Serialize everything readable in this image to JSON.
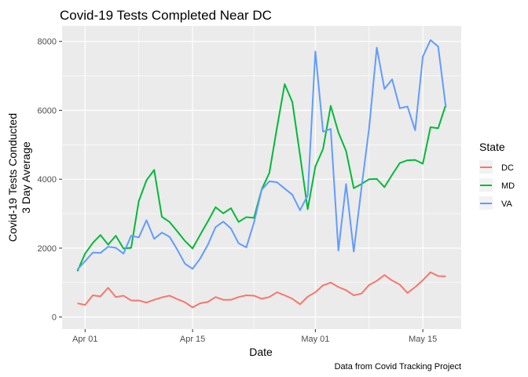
{
  "chart_data": {
    "type": "line",
    "title": "Covid-19 Tests Completed Near DC",
    "xlabel": "Date",
    "ylabel_line1": "Covid-19 Tests Conducted",
    "ylabel_line2": "3 Day Average",
    "caption": "Data from Covid Tracking Project",
    "legend_title": "State",
    "legend_position": "right",
    "grid": true,
    "panel_background": "#ebebeb",
    "xlim": [
      "2020-03-29",
      "2020-05-20"
    ],
    "ylim": [
      -350,
      8450
    ],
    "x_ticks": [
      {
        "date": "2020-04-01",
        "label": "Apr 01"
      },
      {
        "date": "2020-04-15",
        "label": "Apr 15"
      },
      {
        "date": "2020-05-01",
        "label": "May 01"
      },
      {
        "date": "2020-05-15",
        "label": "May 15"
      }
    ],
    "y_ticks": [
      0,
      2000,
      4000,
      6000,
      8000
    ],
    "series": [
      {
        "name": "DC",
        "color": "#F8766D",
        "points": [
          [
            "2020-03-31",
            400
          ],
          [
            "2020-04-01",
            350
          ],
          [
            "2020-04-02",
            630
          ],
          [
            "2020-04-03",
            600
          ],
          [
            "2020-04-04",
            850
          ],
          [
            "2020-04-05",
            580
          ],
          [
            "2020-04-06",
            620
          ],
          [
            "2020-04-07",
            480
          ],
          [
            "2020-04-08",
            480
          ],
          [
            "2020-04-09",
            420
          ],
          [
            "2020-04-10",
            500
          ],
          [
            "2020-04-11",
            570
          ],
          [
            "2020-04-12",
            620
          ],
          [
            "2020-04-13",
            520
          ],
          [
            "2020-04-14",
            430
          ],
          [
            "2020-04-15",
            280
          ],
          [
            "2020-04-16",
            400
          ],
          [
            "2020-04-17",
            440
          ],
          [
            "2020-04-18",
            580
          ],
          [
            "2020-04-19",
            500
          ],
          [
            "2020-04-20",
            500
          ],
          [
            "2020-04-21",
            580
          ],
          [
            "2020-04-22",
            630
          ],
          [
            "2020-04-23",
            620
          ],
          [
            "2020-04-24",
            530
          ],
          [
            "2020-04-25",
            580
          ],
          [
            "2020-04-26",
            720
          ],
          [
            "2020-04-27",
            630
          ],
          [
            "2020-04-28",
            530
          ],
          [
            "2020-04-29",
            370
          ],
          [
            "2020-04-30",
            590
          ],
          [
            "2020-05-01",
            720
          ],
          [
            "2020-05-02",
            920
          ],
          [
            "2020-05-03",
            1000
          ],
          [
            "2020-05-04",
            870
          ],
          [
            "2020-05-05",
            780
          ],
          [
            "2020-05-06",
            630
          ],
          [
            "2020-05-07",
            680
          ],
          [
            "2020-05-08",
            930
          ],
          [
            "2020-05-09",
            1050
          ],
          [
            "2020-05-10",
            1220
          ],
          [
            "2020-05-11",
            1060
          ],
          [
            "2020-05-12",
            940
          ],
          [
            "2020-05-13",
            700
          ],
          [
            "2020-05-14",
            870
          ],
          [
            "2020-05-15",
            1070
          ],
          [
            "2020-05-16",
            1300
          ],
          [
            "2020-05-17",
            1190
          ],
          [
            "2020-05-18",
            1180
          ]
        ]
      },
      {
        "name": "MD",
        "color": "#00BA38",
        "points": [
          [
            "2020-03-31",
            1330
          ],
          [
            "2020-04-01",
            1840
          ],
          [
            "2020-04-02",
            2150
          ],
          [
            "2020-04-03",
            2380
          ],
          [
            "2020-04-04",
            2100
          ],
          [
            "2020-04-05",
            2360
          ],
          [
            "2020-04-06",
            1990
          ],
          [
            "2020-04-07",
            2010
          ],
          [
            "2020-04-08",
            3370
          ],
          [
            "2020-04-09",
            3970
          ],
          [
            "2020-04-10",
            4270
          ],
          [
            "2020-04-11",
            2910
          ],
          [
            "2020-04-12",
            2760
          ],
          [
            "2020-04-13",
            2490
          ],
          [
            "2020-04-14",
            2210
          ],
          [
            "2020-04-15",
            1990
          ],
          [
            "2020-04-16",
            2390
          ],
          [
            "2020-04-17",
            2780
          ],
          [
            "2020-04-18",
            3190
          ],
          [
            "2020-04-19",
            3010
          ],
          [
            "2020-04-20",
            3160
          ],
          [
            "2020-04-21",
            2760
          ],
          [
            "2020-04-22",
            2900
          ],
          [
            "2020-04-23",
            2880
          ],
          [
            "2020-04-24",
            3700
          ],
          [
            "2020-04-25",
            4180
          ],
          [
            "2020-04-26",
            5500
          ],
          [
            "2020-04-27",
            6760
          ],
          [
            "2020-04-28",
            6240
          ],
          [
            "2020-04-29",
            4700
          ],
          [
            "2020-04-30",
            3130
          ],
          [
            "2020-05-01",
            4370
          ],
          [
            "2020-05-02",
            4880
          ],
          [
            "2020-05-03",
            6130
          ],
          [
            "2020-05-04",
            5360
          ],
          [
            "2020-05-05",
            4820
          ],
          [
            "2020-05-06",
            3740
          ],
          [
            "2020-05-07",
            3860
          ],
          [
            "2020-05-08",
            4000
          ],
          [
            "2020-05-09",
            4010
          ],
          [
            "2020-05-10",
            3770
          ],
          [
            "2020-05-11",
            4130
          ],
          [
            "2020-05-12",
            4470
          ],
          [
            "2020-05-13",
            4550
          ],
          [
            "2020-05-14",
            4560
          ],
          [
            "2020-05-15",
            4450
          ],
          [
            "2020-05-16",
            5510
          ],
          [
            "2020-05-17",
            5480
          ],
          [
            "2020-05-18",
            6170
          ]
        ]
      },
      {
        "name": "VA",
        "color": "#619CFF",
        "points": [
          [
            "2020-03-31",
            1380
          ],
          [
            "2020-04-01",
            1620
          ],
          [
            "2020-04-02",
            1870
          ],
          [
            "2020-04-03",
            1860
          ],
          [
            "2020-04-04",
            2040
          ],
          [
            "2020-04-05",
            2010
          ],
          [
            "2020-04-06",
            1840
          ],
          [
            "2020-04-07",
            2360
          ],
          [
            "2020-04-08",
            2310
          ],
          [
            "2020-04-09",
            2810
          ],
          [
            "2020-04-10",
            2270
          ],
          [
            "2020-04-11",
            2450
          ],
          [
            "2020-04-12",
            2330
          ],
          [
            "2020-04-13",
            1960
          ],
          [
            "2020-04-14",
            1550
          ],
          [
            "2020-04-15",
            1400
          ],
          [
            "2020-04-16",
            1700
          ],
          [
            "2020-04-17",
            2100
          ],
          [
            "2020-04-18",
            2610
          ],
          [
            "2020-04-19",
            2770
          ],
          [
            "2020-04-20",
            2570
          ],
          [
            "2020-04-21",
            2140
          ],
          [
            "2020-04-22",
            2020
          ],
          [
            "2020-04-23",
            2740
          ],
          [
            "2020-04-24",
            3690
          ],
          [
            "2020-04-25",
            3940
          ],
          [
            "2020-04-26",
            3910
          ],
          [
            "2020-04-27",
            3730
          ],
          [
            "2020-04-28",
            3550
          ],
          [
            "2020-04-29",
            3100
          ],
          [
            "2020-04-30",
            3530
          ],
          [
            "2020-05-01",
            7710
          ],
          [
            "2020-05-02",
            5380
          ],
          [
            "2020-05-03",
            5460
          ],
          [
            "2020-05-04",
            1930
          ],
          [
            "2020-05-05",
            3860
          ],
          [
            "2020-05-06",
            1900
          ],
          [
            "2020-05-07",
            3740
          ],
          [
            "2020-05-08",
            5480
          ],
          [
            "2020-05-09",
            7820
          ],
          [
            "2020-05-10",
            6620
          ],
          [
            "2020-05-11",
            6900
          ],
          [
            "2020-05-12",
            6060
          ],
          [
            "2020-05-13",
            6110
          ],
          [
            "2020-05-14",
            5420
          ],
          [
            "2020-05-15",
            7560
          ],
          [
            "2020-05-16",
            8040
          ],
          [
            "2020-05-17",
            7850
          ],
          [
            "2020-05-18",
            6080
          ]
        ]
      }
    ]
  }
}
